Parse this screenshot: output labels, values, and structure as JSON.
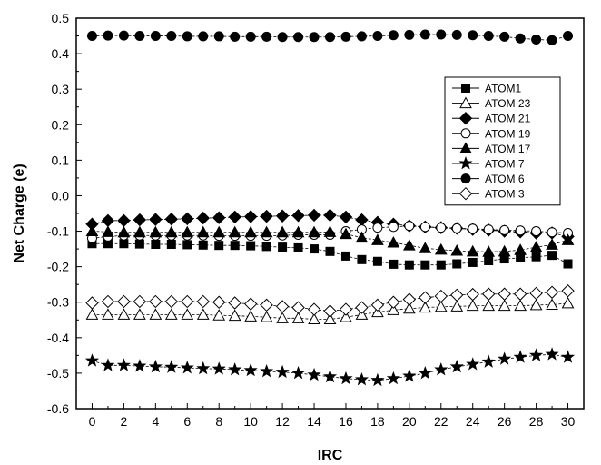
{
  "chart_data": {
    "type": "line",
    "title": "",
    "xlabel": "IRC",
    "ylabel": "Net Charge  (e)",
    "xlim": [
      -1,
      31
    ],
    "ylim": [
      -0.6,
      0.5
    ],
    "xticks": [
      0,
      2,
      4,
      6,
      8,
      10,
      12,
      14,
      16,
      18,
      20,
      22,
      24,
      26,
      28,
      30
    ],
    "yticks": [
      -0.6,
      -0.5,
      -0.4,
      -0.3,
      -0.2,
      -0.1,
      0.0,
      0.1,
      0.2,
      0.3,
      0.4,
      0.5
    ],
    "ytick_labels": [
      "-0.6",
      "-0.5",
      "-0.4",
      "-0.3",
      "-0.2",
      "-0.1",
      "0.0",
      "0.1",
      "0.2",
      "0.3",
      "0.4",
      "0.5"
    ],
    "grid": false,
    "legend_position": "top-right",
    "x": [
      0,
      1,
      2,
      3,
      4,
      5,
      6,
      7,
      8,
      9,
      10,
      11,
      12,
      13,
      14,
      15,
      16,
      17,
      18,
      19,
      20,
      21,
      22,
      23,
      24,
      25,
      26,
      27,
      28,
      29,
      30
    ],
    "series": [
      {
        "name": "ATOM1",
        "marker": "square-filled",
        "values": [
          -0.135,
          -0.135,
          -0.135,
          -0.136,
          -0.137,
          -0.137,
          -0.138,
          -0.139,
          -0.14,
          -0.14,
          -0.141,
          -0.143,
          -0.145,
          -0.147,
          -0.15,
          -0.157,
          -0.17,
          -0.18,
          -0.185,
          -0.193,
          -0.195,
          -0.195,
          -0.195,
          -0.192,
          -0.188,
          -0.183,
          -0.178,
          -0.175,
          -0.172,
          -0.168,
          -0.192
        ]
      },
      {
        "name": "ATOM 23",
        "marker": "triangle-open",
        "values": [
          -0.335,
          -0.335,
          -0.335,
          -0.335,
          -0.335,
          -0.335,
          -0.335,
          -0.335,
          -0.337,
          -0.338,
          -0.34,
          -0.342,
          -0.345,
          -0.345,
          -0.348,
          -0.348,
          -0.342,
          -0.335,
          -0.328,
          -0.322,
          -0.318,
          -0.315,
          -0.313,
          -0.312,
          -0.31,
          -0.31,
          -0.31,
          -0.31,
          -0.308,
          -0.307,
          -0.303
        ]
      },
      {
        "name": "ATOM 21",
        "marker": "diamond-filled",
        "values": [
          -0.08,
          -0.07,
          -0.07,
          -0.068,
          -0.067,
          -0.066,
          -0.065,
          -0.063,
          -0.062,
          -0.06,
          -0.059,
          -0.058,
          -0.057,
          -0.056,
          -0.055,
          -0.055,
          -0.06,
          -0.068,
          -0.075,
          -0.08,
          -0.085,
          -0.088,
          -0.09,
          -0.092,
          -0.095,
          -0.097,
          -0.1,
          -0.102,
          -0.105,
          -0.105,
          -0.115
        ]
      },
      {
        "name": "ATOM 19",
        "marker": "circle-open",
        "values": [
          -0.12,
          -0.115,
          -0.112,
          -0.112,
          -0.112,
          -0.112,
          -0.112,
          -0.112,
          -0.113,
          -0.113,
          -0.113,
          -0.113,
          -0.112,
          -0.11,
          -0.11,
          -0.11,
          -0.1,
          -0.095,
          -0.09,
          -0.088,
          -0.085,
          -0.088,
          -0.09,
          -0.092,
          -0.093,
          -0.095,
          -0.097,
          -0.098,
          -0.1,
          -0.103,
          -0.105
        ]
      },
      {
        "name": "ATOM 17",
        "marker": "triangle-filled",
        "values": [
          -0.1,
          -0.102,
          -0.103,
          -0.103,
          -0.103,
          -0.103,
          -0.103,
          -0.103,
          -0.103,
          -0.103,
          -0.103,
          -0.103,
          -0.103,
          -0.103,
          -0.103,
          -0.102,
          -0.108,
          -0.118,
          -0.125,
          -0.132,
          -0.14,
          -0.148,
          -0.152,
          -0.155,
          -0.157,
          -0.158,
          -0.157,
          -0.153,
          -0.145,
          -0.138,
          -0.125
        ]
      },
      {
        "name": "ATOM 7",
        "marker": "star-filled",
        "values": [
          -0.465,
          -0.478,
          -0.478,
          -0.48,
          -0.482,
          -0.483,
          -0.485,
          -0.487,
          -0.488,
          -0.49,
          -0.492,
          -0.495,
          -0.497,
          -0.5,
          -0.505,
          -0.51,
          -0.515,
          -0.518,
          -0.52,
          -0.515,
          -0.508,
          -0.5,
          -0.49,
          -0.482,
          -0.475,
          -0.468,
          -0.46,
          -0.455,
          -0.45,
          -0.447,
          -0.455
        ]
      },
      {
        "name": "ATOM 6",
        "marker": "circle-filled",
        "values": [
          0.45,
          0.451,
          0.451,
          0.45,
          0.45,
          0.45,
          0.449,
          0.449,
          0.449,
          0.448,
          0.448,
          0.448,
          0.447,
          0.447,
          0.447,
          0.447,
          0.448,
          0.449,
          0.45,
          0.452,
          0.453,
          0.454,
          0.454,
          0.453,
          0.452,
          0.45,
          0.448,
          0.443,
          0.44,
          0.438,
          0.45
        ]
      },
      {
        "name": "ATOM 3",
        "marker": "diamond-open",
        "values": [
          -0.302,
          -0.298,
          -0.298,
          -0.298,
          -0.298,
          -0.298,
          -0.298,
          -0.298,
          -0.3,
          -0.302,
          -0.305,
          -0.308,
          -0.312,
          -0.315,
          -0.32,
          -0.325,
          -0.32,
          -0.315,
          -0.308,
          -0.3,
          -0.292,
          -0.287,
          -0.283,
          -0.28,
          -0.278,
          -0.277,
          -0.277,
          -0.277,
          -0.275,
          -0.272,
          -0.268
        ]
      }
    ]
  }
}
